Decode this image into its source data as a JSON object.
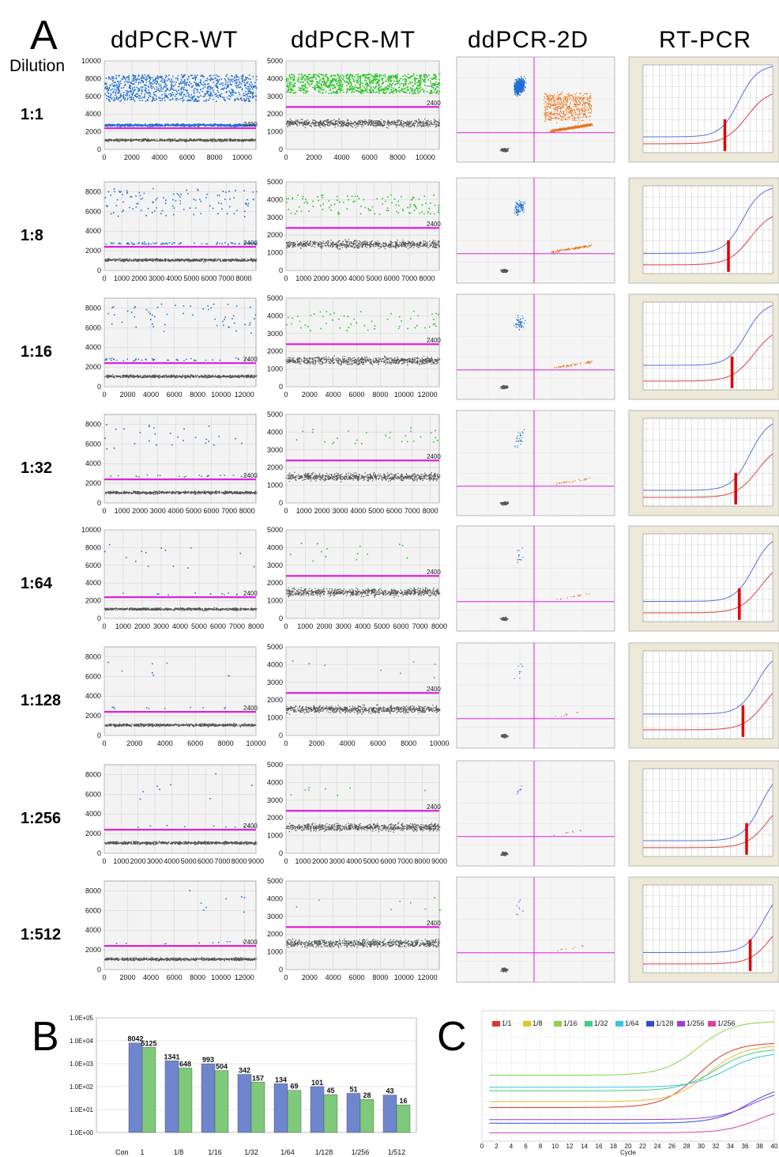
{
  "panel_labels": {
    "a": "A",
    "b": "B",
    "c": "C"
  },
  "row_header": "Dilution",
  "column_headers": [
    "ddPCR-WT",
    "ddPCR-MT",
    "ddPCR-2D",
    "RT-PCR"
  ],
  "threshold_label": "2400",
  "colors": {
    "wt": "#1e6fd0",
    "mt": "#22c41f",
    "mt2d": "#e8741e",
    "neg": "#555555",
    "threshold": "#e020e0",
    "rt_blue": "#5a6ee0",
    "rt_red": "#e04040",
    "rt_ct": "#e00000",
    "bar_wt": "#6f86cf",
    "bar_mt": "#7fc97a"
  },
  "chart_data": [
    {
      "type": "scatter",
      "panel": "A",
      "title": "ddPCR droplet plots",
      "rows": [
        {
          "dilution": "1:1",
          "wt": {
            "yticks": [
              "0",
              "2000",
              "4000",
              "6000",
              "8000",
              "10000"
            ],
            "ymax": 10000,
            "xticks": [
              "0",
              "2000",
              "4000",
              "6000",
              "8000",
              "10000"
            ],
            "xmax": 11000,
            "positive_band": [
              3000,
              9000
            ],
            "dense": true,
            "threshold": 2400
          },
          "mt": {
            "yticks": [
              "0",
              "1000",
              "2000",
              "3000",
              "4000",
              "5000"
            ],
            "ymax": 5000,
            "xticks": [
              "0",
              "2000",
              "4000",
              "6000",
              "8000",
              "10000"
            ],
            "xmax": 11000,
            "positive_band": [
              3000,
              4800
            ],
            "negative": 1700,
            "dense": true,
            "threshold": 2400
          }
        },
        {
          "dilution": "1:8",
          "wt": {
            "yticks": [
              "0",
              "2000",
              "4000",
              "6000",
              "8000"
            ],
            "ymax": 9000,
            "xticks": [
              "0",
              "1000",
              "2000",
              "3000",
              "4000",
              "5000",
              "6000",
              "7000",
              "8000"
            ],
            "xmax": 8700,
            "threshold": 2400
          },
          "mt": {
            "yticks": [
              "0",
              "1000",
              "2000",
              "3000",
              "4000",
              "5000"
            ],
            "ymax": 5000,
            "xticks": [
              "0",
              "1000",
              "2000",
              "3000",
              "4000",
              "5000",
              "6000",
              "7000",
              "8000"
            ],
            "xmax": 8700,
            "threshold": 2400
          }
        },
        {
          "dilution": "1:16",
          "wt": {
            "yticks": [
              "0",
              "2000",
              "4000",
              "6000",
              "8000"
            ],
            "ymax": 9000,
            "xticks": [
              "0",
              "2000",
              "4000",
              "6000",
              "8000",
              "10000",
              "12000"
            ],
            "xmax": 13000,
            "threshold": 2400
          },
          "mt": {
            "yticks": [
              "0",
              "1000",
              "2000",
              "3000",
              "4000",
              "5000"
            ],
            "ymax": 5000,
            "xticks": [
              "0",
              "2000",
              "4000",
              "6000",
              "8000",
              "10000",
              "12000"
            ],
            "xmax": 13000,
            "threshold": 2400
          }
        },
        {
          "dilution": "1:32",
          "wt": {
            "yticks": [
              "0",
              "2000",
              "4000",
              "6000",
              "8000"
            ],
            "ymax": 9000,
            "xticks": [
              "0",
              "1000",
              "2000",
              "3000",
              "4000",
              "5000",
              "6000",
              "7000",
              "8000"
            ],
            "xmax": 8500,
            "threshold": 2400
          },
          "mt": {
            "yticks": [
              "0",
              "1000",
              "2000",
              "3000",
              "4000",
              "5000"
            ],
            "ymax": 5000,
            "xticks": [
              "0",
              "1000",
              "2000",
              "3000",
              "4000",
              "5000",
              "6000",
              "7000",
              "8000"
            ],
            "xmax": 8500,
            "threshold": 2400
          }
        },
        {
          "dilution": "1:64",
          "wt": {
            "yticks": [
              "0",
              "2000",
              "4000",
              "6000",
              "8000",
              "10000"
            ],
            "ymax": 10000,
            "xticks": [
              "0",
              "1000",
              "2000",
              "3000",
              "4000",
              "5000",
              "6000",
              "7000",
              "8000"
            ],
            "xmax": 8000,
            "threshold": 2400
          },
          "mt": {
            "yticks": [
              "0",
              "1000",
              "2000",
              "3000",
              "4000",
              "5000"
            ],
            "ymax": 5000,
            "xticks": [
              "0",
              "1000",
              "2000",
              "3000",
              "4000",
              "5000",
              "6000",
              "7000",
              "8000"
            ],
            "xmax": 8000,
            "threshold": 2400
          }
        },
        {
          "dilution": "1:128",
          "wt": {
            "yticks": [
              "0",
              "2000",
              "4000",
              "6000",
              "8000"
            ],
            "ymax": 9000,
            "xticks": [
              "0",
              "2000",
              "4000",
              "6000",
              "8000",
              "10000"
            ],
            "xmax": 10000,
            "threshold": 2400
          },
          "mt": {
            "yticks": [
              "0",
              "1000",
              "2000",
              "3000",
              "4000",
              "5000"
            ],
            "ymax": 5000,
            "xticks": [
              "0",
              "2000",
              "4000",
              "6000",
              "8000",
              "10000"
            ],
            "xmax": 10000,
            "threshold": 2400
          }
        },
        {
          "dilution": "1:256",
          "wt": {
            "yticks": [
              "0",
              "2000",
              "4000",
              "6000",
              "8000"
            ],
            "ymax": 9000,
            "xticks": [
              "0",
              "1000",
              "2000",
              "3000",
              "4000",
              "5000",
              "6000",
              "7000",
              "8000",
              "9000"
            ],
            "xmax": 9000,
            "threshold": 2400
          },
          "mt": {
            "yticks": [
              "0",
              "1000",
              "2000",
              "3000",
              "4000",
              "5000"
            ],
            "ymax": 5000,
            "xticks": [
              "0",
              "1000",
              "2000",
              "3000",
              "4000",
              "5000",
              "6000",
              "7000",
              "8000",
              "9000"
            ],
            "xmax": 9000,
            "threshold": 2400
          }
        },
        {
          "dilution": "1:512",
          "wt": {
            "yticks": [
              "0",
              "2000",
              "4000",
              "6000",
              "8000"
            ],
            "ymax": 9000,
            "xticks": [
              "0",
              "2000",
              "4000",
              "6000",
              "8000",
              "10000",
              "12000"
            ],
            "xmax": 13000,
            "threshold": 2400
          },
          "mt": {
            "yticks": [
              "0",
              "1000",
              "2000",
              "3000",
              "4000",
              "5000"
            ],
            "ymax": 5000,
            "xticks": [
              "0",
              "2000",
              "4000",
              "6000",
              "8000",
              "10000",
              "12000"
            ],
            "xmax": 13000,
            "threshold": 2400
          }
        }
      ]
    },
    {
      "type": "bar",
      "panel": "B",
      "scale": "log",
      "yticks": [
        "1.0E+05",
        "1.0E+04",
        "1.0E+03",
        "1.0E+02",
        "1.0E+01",
        "1.0E+00"
      ],
      "ylim": [
        1,
        100000
      ],
      "axis_start_label": "Con",
      "categories": [
        "1",
        "1/8",
        "1/16",
        "1/32",
        "1/64",
        "1/128",
        "1/256",
        "1/512"
      ],
      "series": [
        {
          "values": [
            8042,
            1341,
            993,
            342,
            134,
            101,
            51,
            43
          ]
        },
        {
          "values": [
            5125,
            648,
            504,
            157,
            69,
            45,
            28,
            16
          ]
        }
      ]
    },
    {
      "type": "line",
      "panel": "C",
      "xlabel": "Cycle",
      "xticks": [
        "0",
        "2",
        "4",
        "6",
        "8",
        "10",
        "12",
        "14",
        "16",
        "18",
        "20",
        "22",
        "24",
        "26",
        "28",
        "30",
        "32",
        "34",
        "36",
        "38",
        "40"
      ],
      "xlim": [
        0,
        40
      ],
      "legend": [
        {
          "name": "1/1",
          "color": "#d93b2b"
        },
        {
          "name": "1/8",
          "color": "#e6c229"
        },
        {
          "name": "1/16",
          "color": "#8bd44a"
        },
        {
          "name": "1/32",
          "color": "#3dcf8a"
        },
        {
          "name": "1/64",
          "color": "#35c3e6"
        },
        {
          "name": "1/128",
          "color": "#3248d6"
        },
        {
          "name": "1/256",
          "color": "#9b3ed9"
        },
        {
          "name": "1/256",
          "color": "#e0409a"
        }
      ]
    }
  ]
}
